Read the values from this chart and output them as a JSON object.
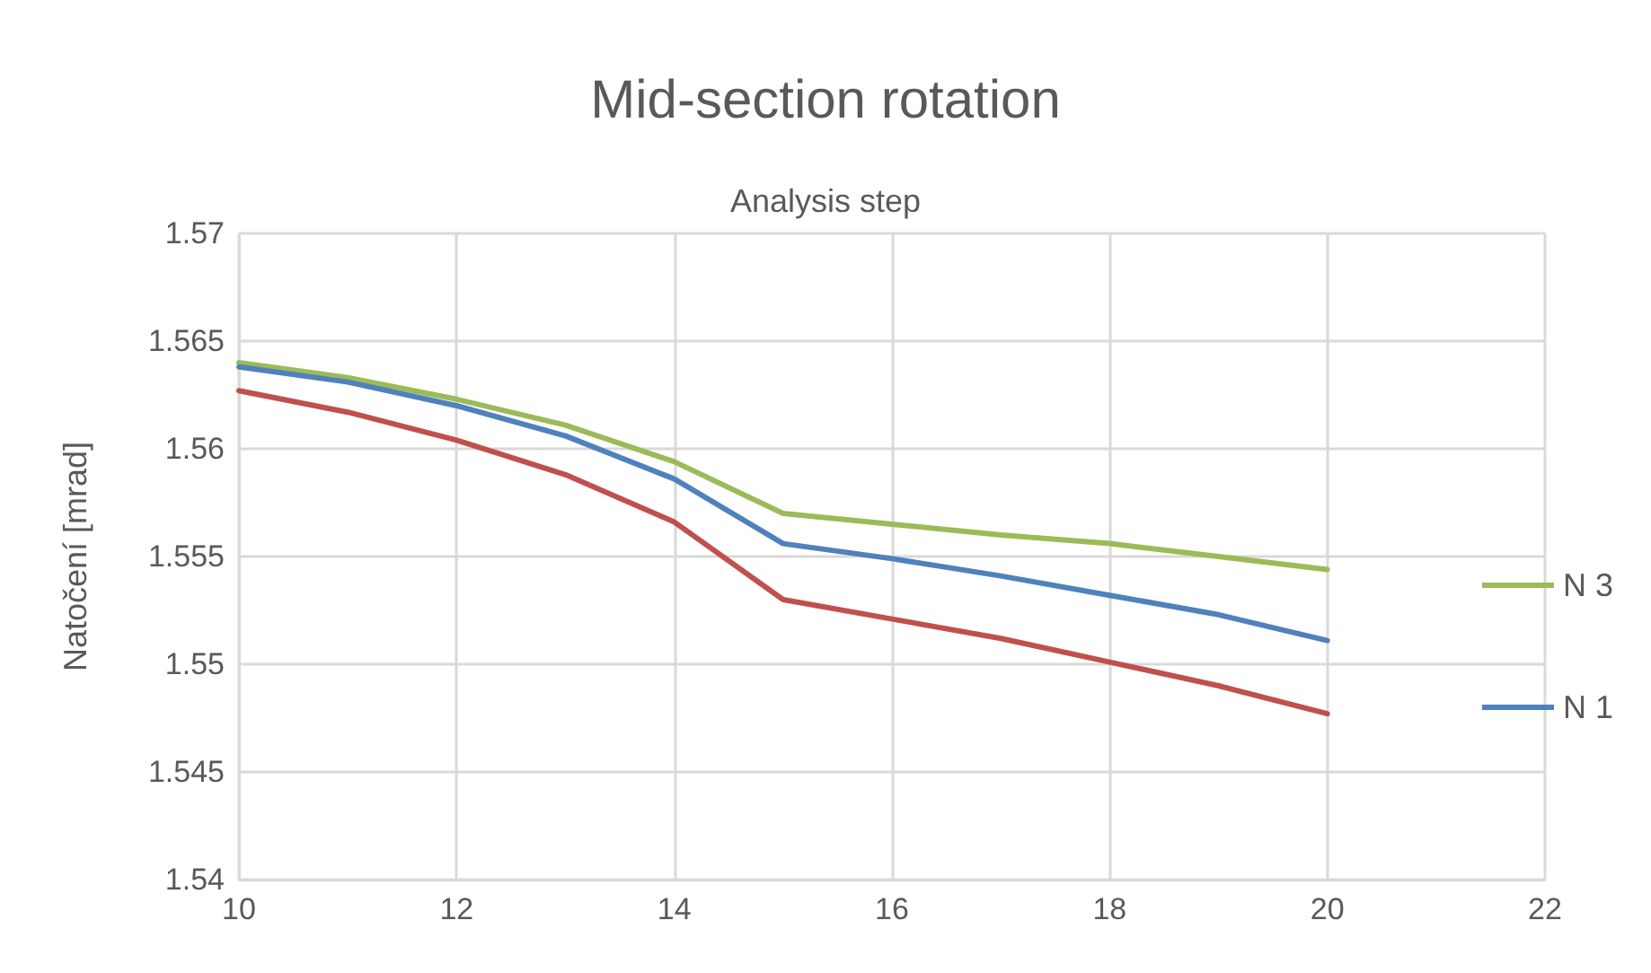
{
  "chart_data": {
    "type": "line",
    "title": "Mid-section rotation",
    "xlabel": "Analysis step",
    "ylabel": "Natočení [mrad]",
    "x": [
      10,
      11,
      12,
      13,
      14,
      15,
      16,
      17,
      18,
      19,
      20
    ],
    "series": [
      {
        "name": "N 3",
        "color": "#9bbb59",
        "values": [
          1.564,
          1.5633,
          1.5623,
          1.5611,
          1.5594,
          1.557,
          1.5565,
          1.556,
          1.5556,
          1.555,
          1.5544
        ]
      },
      {
        "name": "N 1",
        "color": "#4f81bd",
        "values": [
          1.5638,
          1.5631,
          1.562,
          1.5606,
          1.5586,
          1.5556,
          1.5549,
          1.5541,
          1.5532,
          1.5523,
          1.5511
        ]
      },
      {
        "color": "#c0504d",
        "values": [
          1.5627,
          1.5617,
          1.5604,
          1.5588,
          1.5566,
          1.553,
          1.5521,
          1.5512,
          1.5501,
          1.549,
          1.5477
        ]
      }
    ],
    "xlim": [
      10,
      22
    ],
    "xticks": [
      10,
      12,
      14,
      16,
      18,
      20,
      22
    ],
    "ylim": [
      1.54,
      1.57
    ],
    "yticks": [
      1.54,
      1.545,
      1.55,
      1.555,
      1.56,
      1.565,
      1.57
    ],
    "grid": true,
    "legend": "right",
    "marker": "none",
    "line_style": "solid"
  }
}
